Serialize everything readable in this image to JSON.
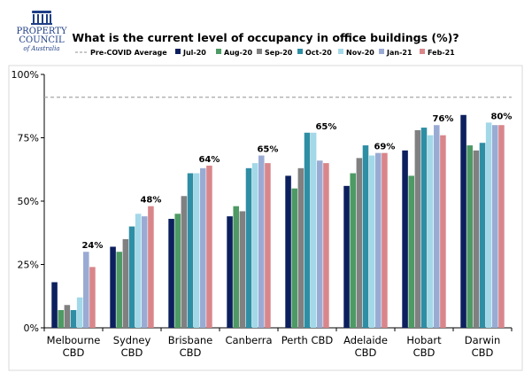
{
  "logo": {
    "line1": "PROPERTY",
    "line2": "COUNCIL",
    "line3": "of Australia"
  },
  "chart_data": {
    "type": "bar",
    "title": "What is the current level of occupancy in office buildings (%)?",
    "categories": [
      [
        "Melbourne",
        "CBD"
      ],
      [
        "Sydney",
        "CBD"
      ],
      [
        "Brisbane",
        "CBD"
      ],
      [
        "Canberra"
      ],
      [
        "Perth CBD"
      ],
      [
        "Adelaide",
        "CBD"
      ],
      [
        "Hobart",
        "CBD"
      ],
      [
        "Darwin",
        "CBD"
      ]
    ],
    "ylim": [
      0,
      100
    ],
    "yticks": [
      0,
      25,
      50,
      75,
      100
    ],
    "ytick_labels": [
      "0%",
      "25%",
      "50%",
      "75%",
      "100%"
    ],
    "grid": false,
    "legend_position": "top",
    "reference_line": {
      "name": "Pre-COVID Average",
      "value": 91,
      "color": "#a6a6a6"
    },
    "series": [
      {
        "name": "Jul-20",
        "color": "#0c1f5e",
        "values": [
          18,
          32,
          43,
          44,
          60,
          56,
          70,
          84
        ]
      },
      {
        "name": "Aug-20",
        "color": "#4d9a64",
        "values": [
          7,
          30,
          45,
          48,
          55,
          61,
          60,
          72
        ]
      },
      {
        "name": "Sep-20",
        "color": "#808080",
        "values": [
          9,
          35,
          52,
          46,
          63,
          67,
          78,
          70
        ]
      },
      {
        "name": "Oct-20",
        "color": "#2e8ea4",
        "values": [
          7,
          40,
          61,
          63,
          77,
          72,
          79,
          73
        ]
      },
      {
        "name": "Nov-20",
        "color": "#a3d8e8",
        "values": [
          12,
          45,
          61,
          65,
          77,
          68,
          76,
          81
        ]
      },
      {
        "name": "Jan-21",
        "color": "#9aabd3",
        "values": [
          30,
          44,
          63,
          68,
          66,
          69,
          80,
          80
        ]
      },
      {
        "name": "Feb-21",
        "color": "#d9868a",
        "values": [
          24,
          48,
          64,
          65,
          65,
          69,
          76,
          80
        ]
      }
    ],
    "data_labels": [
      "24%",
      "48%",
      "64%",
      "65%",
      "65%",
      "69%",
      "76%",
      "80%"
    ]
  }
}
